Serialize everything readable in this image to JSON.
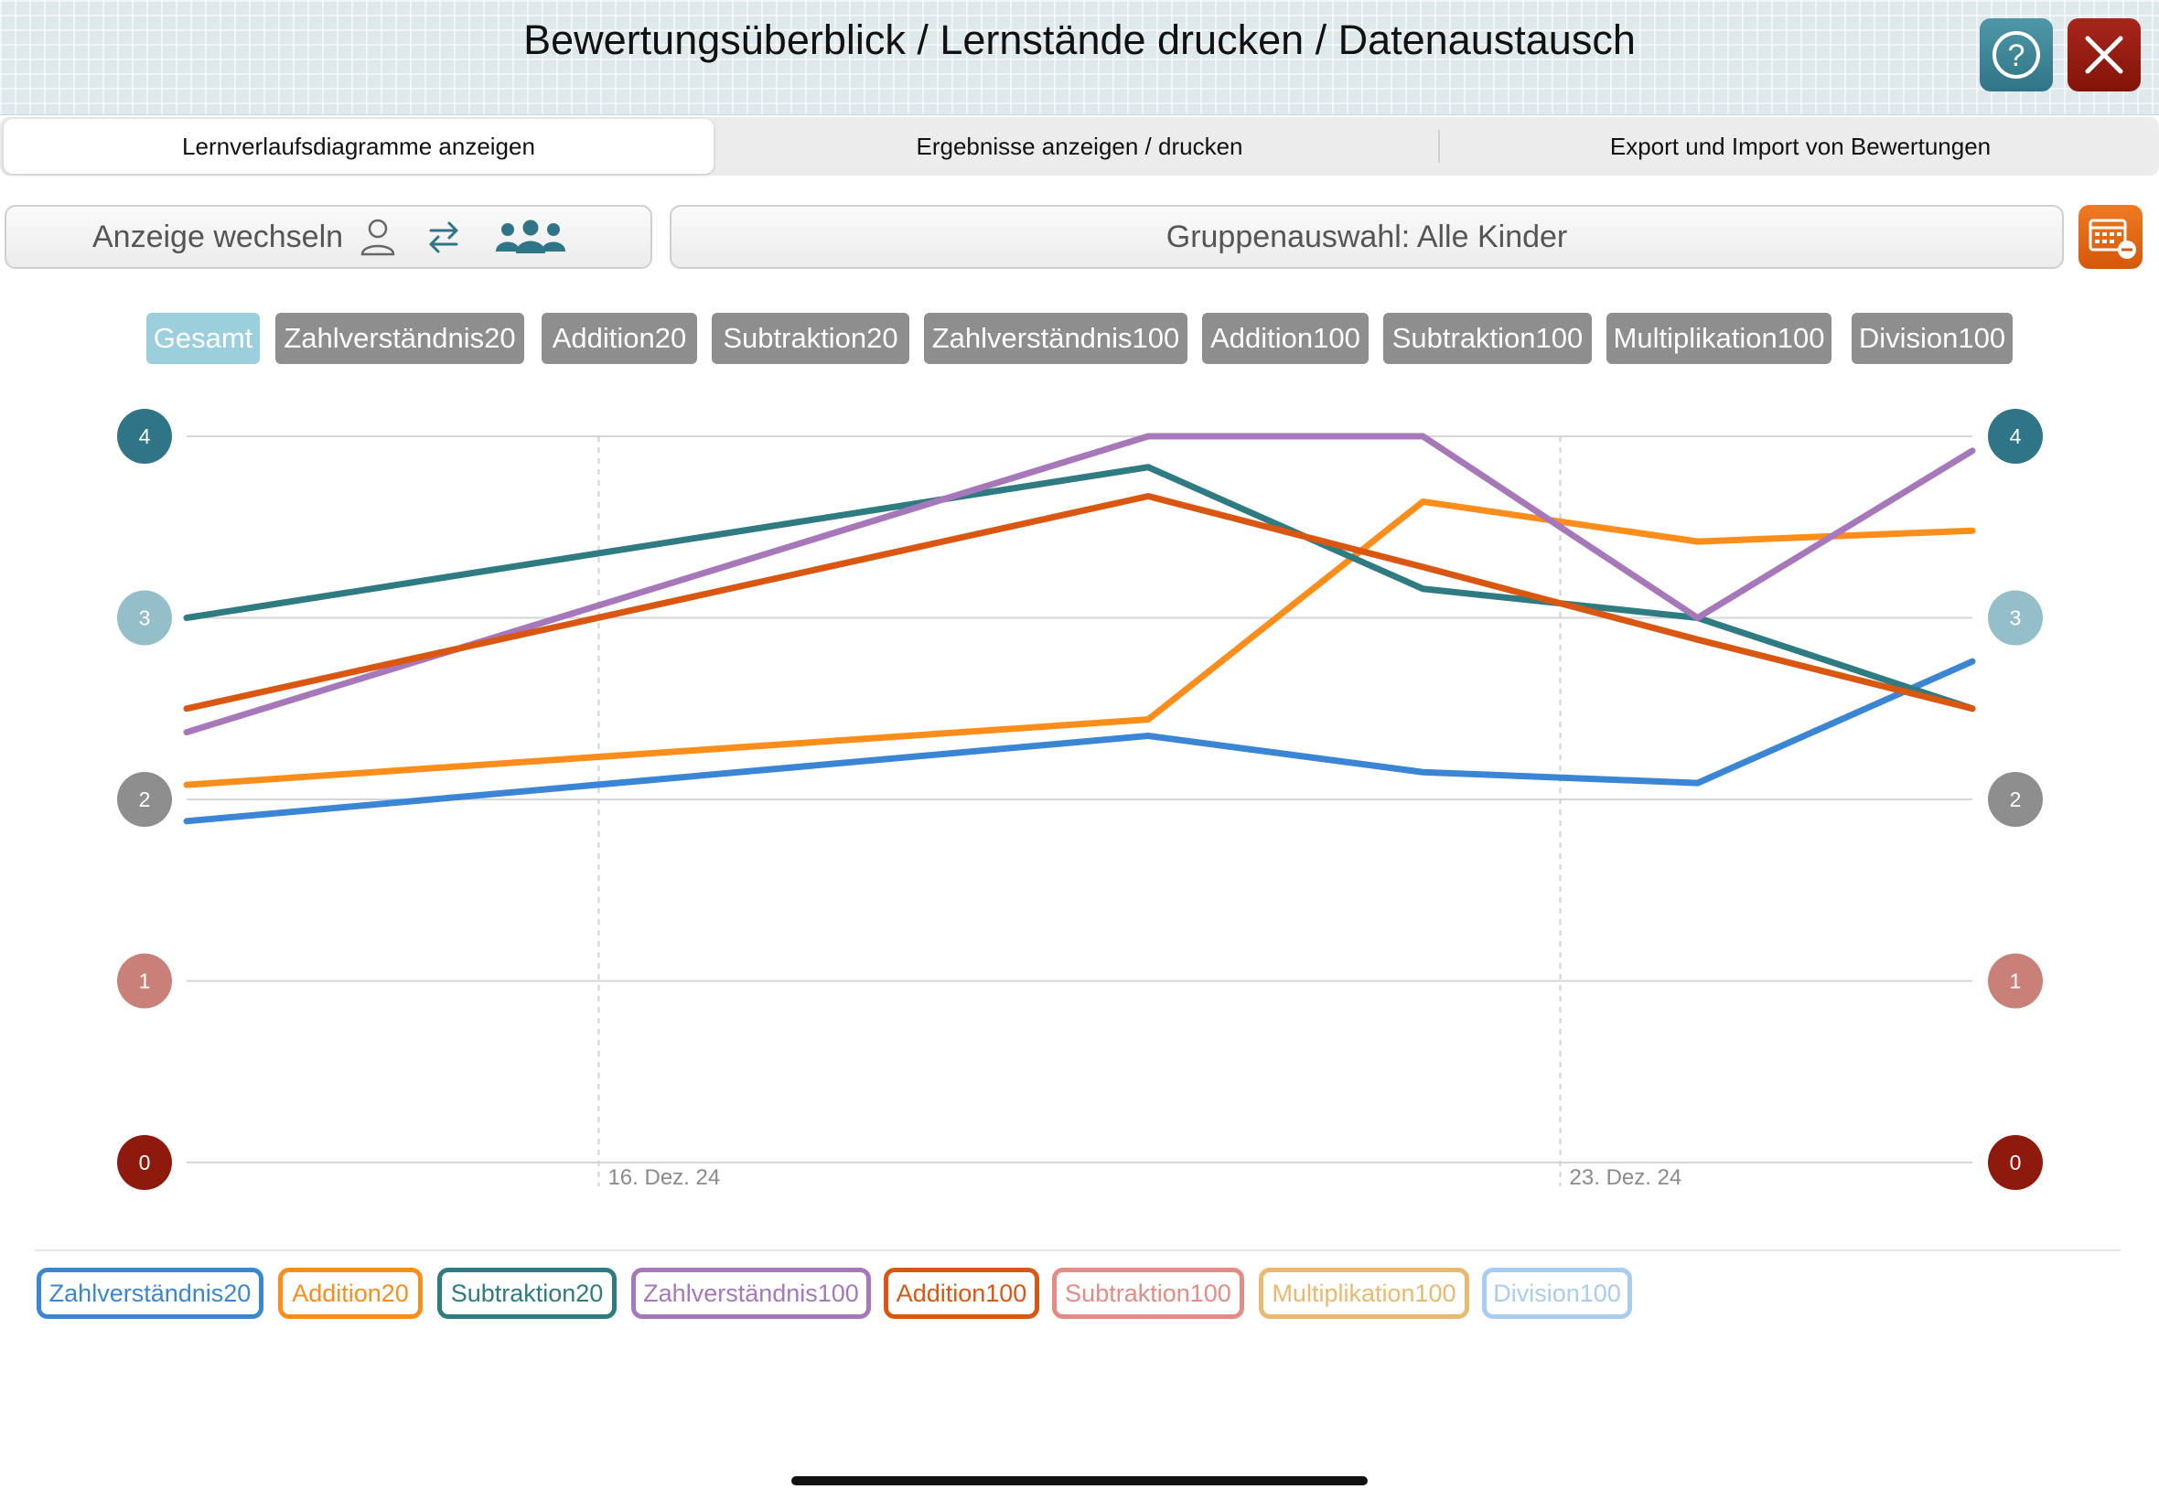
{
  "header": {
    "title": "Bewertungsüberblick / Lernstände drucken / Datenaustausch",
    "help_icon": "question-circle-icon",
    "close_icon": "close-x-icon"
  },
  "tabs": [
    {
      "label": "Lernverlaufsdiagramme anzeigen",
      "active": true
    },
    {
      "label": "Ergebnisse anzeigen / drucken",
      "active": false
    },
    {
      "label": "Export und Import von Bewertungen",
      "active": false
    }
  ],
  "controls": {
    "switch_label": "Anzeige wechseln",
    "group_label": "Gruppenauswahl: Alle Kinder"
  },
  "filters": [
    {
      "label": "Gesamt",
      "active": true
    },
    {
      "label": "Zahlverständnis20",
      "active": false
    },
    {
      "label": "Addition20",
      "active": false
    },
    {
      "label": "Subtraktion20",
      "active": false
    },
    {
      "label": "Zahlverständnis100",
      "active": false
    },
    {
      "label": "Addition100",
      "active": false
    },
    {
      "label": "Subtraktion100",
      "active": false
    },
    {
      "label": "Multiplikation100",
      "active": false
    },
    {
      "label": "Division100",
      "active": false
    }
  ],
  "colors": {
    "accent_teal": "#2f7587",
    "close_red": "#9b1d12",
    "calendar_orange": "#e8680f",
    "chip_active": "#9ccfdc",
    "chip_inactive": "#8e8e8e"
  },
  "chart_data": {
    "type": "line",
    "x_labels": [
      "16. Dez. 24",
      "23. Dez. 24"
    ],
    "ylim": [
      0,
      4
    ],
    "y_ticks": [
      {
        "value": 0,
        "label": "0",
        "color": "#8e1a0e"
      },
      {
        "value": 1,
        "label": "1",
        "color": "#c98079"
      },
      {
        "value": 2,
        "label": "2",
        "color": "#8e8e8e"
      },
      {
        "value": 3,
        "label": "3",
        "color": "#95bfc8"
      },
      {
        "value": 4,
        "label": "4",
        "color": "#2f7587"
      }
    ],
    "x": [
      0,
      7,
      9,
      11,
      13
    ],
    "xlim": [
      0,
      13
    ],
    "date_ticks": [
      3,
      10
    ],
    "series": [
      {
        "name": "Zahlverständnis20",
        "color": "#3a86d4",
        "values": [
          1.88,
          2.35,
          2.15,
          2.09,
          2.76
        ]
      },
      {
        "name": "Addition20",
        "color": "#fb8d1b",
        "values": [
          2.08,
          2.44,
          3.64,
          3.42,
          3.48
        ]
      },
      {
        "name": "Subtraktion20",
        "color": "#2f7b82",
        "values": [
          3.0,
          3.83,
          3.16,
          3.0,
          2.5
        ]
      },
      {
        "name": "Zahlverständnis100",
        "color": "#a678ba",
        "values": [
          2.37,
          4.0,
          4.0,
          3.0,
          3.92
        ]
      },
      {
        "name": "Addition100",
        "color": "#d95711",
        "values": [
          2.5,
          3.67,
          3.28,
          2.88,
          2.5
        ]
      }
    ],
    "legend": [
      {
        "name": "Zahlverständnis20",
        "color": "#3a86d4"
      },
      {
        "name": "Addition20",
        "color": "#fb8d1b"
      },
      {
        "name": "Subtraktion20",
        "color": "#2f7b82"
      },
      {
        "name": "Zahlverständnis100",
        "color": "#a678ba"
      },
      {
        "name": "Addition100",
        "color": "#d95711"
      },
      {
        "name": "Subtraktion100",
        "color": "#e58a85"
      },
      {
        "name": "Multiplikation100",
        "color": "#eab86e"
      },
      {
        "name": "Division100",
        "color": "#a9cdf0"
      }
    ]
  }
}
